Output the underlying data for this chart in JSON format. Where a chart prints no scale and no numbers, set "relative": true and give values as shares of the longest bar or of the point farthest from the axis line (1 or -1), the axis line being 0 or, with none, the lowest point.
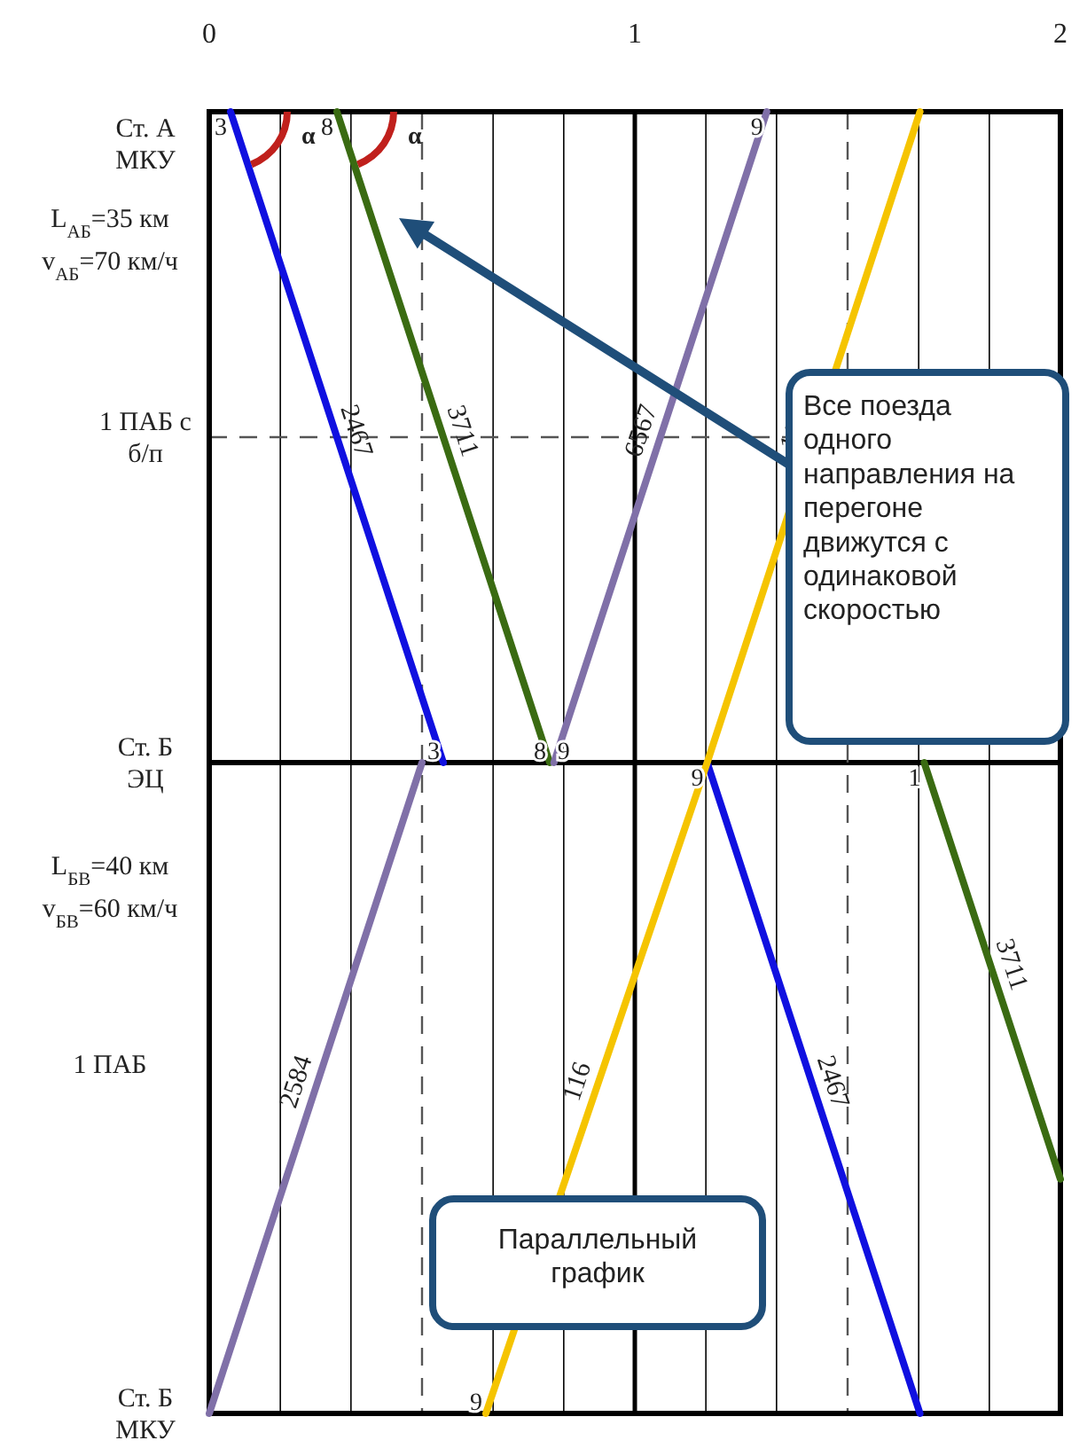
{
  "chart_data": {
    "type": "line",
    "relative": true,
    "xlim": [
      0,
      2
    ],
    "xticks": [
      0,
      {
        "value": 0.167,
        "label": null
      },
      {
        "value": 0.333,
        "label": null
      },
      {
        "value": 0.667,
        "label": null
      },
      {
        "value": 0.833,
        "label": null
      },
      1,
      {
        "value": 1.167,
        "label": null
      },
      {
        "value": 1.333,
        "label": null
      },
      {
        "value": 1.667,
        "label": null
      },
      {
        "value": 1.833,
        "label": null
      },
      2
    ],
    "grid": "x",
    "marker": "none",
    "line_style": "solid",
    "series": [
      {
        "name": "2467",
        "color": "#1010e0",
        "x": [
          0.05,
          0.55,
          null,
          1.17,
          1.67
        ],
        "values": [
          1,
          0.5,
          null,
          0.5,
          0
        ]
      },
      {
        "name": "3711",
        "color": "#3a6b12",
        "x": [
          0.3,
          0.8,
          null,
          1.68,
          2
        ],
        "values": [
          1,
          0.5,
          null,
          0.5,
          0.18
        ]
      },
      {
        "name": "6567",
        "color": "#8070a8",
        "x": [
          0.81,
          1.31
        ],
        "values": [
          0.5,
          1
        ]
      },
      {
        "name": "2584",
        "color": "#8070a8",
        "x": [
          0,
          0.5
        ],
        "values": [
          0,
          0.5
        ]
      },
      {
        "name": "116",
        "color": "#f5c400",
        "x": [
          0.65,
          1.17,
          null,
          1.17,
          1.67
        ],
        "values": [
          0,
          0.5,
          null,
          0.5,
          1
        ]
      }
    ],
    "ref_lines": [
      {
        "axis": "y",
        "value": 0.5,
        "label": "Ст. Б\nЭЦ",
        "color": "#000000",
        "line_style": "solid"
      },
      {
        "axis": "y",
        "value": 0.75,
        "label": "1 ПАБ с\nб/п",
        "line_style": "dashed",
        "color": "#555555"
      },
      {
        "axis": "x",
        "value": 0.5,
        "line_style": "dashed",
        "color": "#555555"
      },
      {
        "axis": "x",
        "value": 1,
        "line_style": "solid",
        "color": "#000000"
      },
      {
        "axis": "x",
        "value": 1.5,
        "line_style": "dashed",
        "color": "#555555"
      }
    ],
    "annotations": [
      "L$_{АБ}$=35 км",
      "v$_{АБ}$=70 км/ч",
      "L$_{БВ}$=40 км",
      "v$_{БВ}$=60 км/ч",
      "1 ПАБ",
      {
        "text": "3",
        "x": 0.05,
        "y": 1
      },
      {
        "text": "8",
        "x": 0.3,
        "y": 1
      },
      {
        "text": "9",
        "x": 1.31,
        "y": 1
      },
      {
        "text": "3",
        "x": 0.55,
        "y": 0.5
      },
      {
        "text": "8",
        "x": 0.8,
        "y": 0.5
      },
      {
        "text": "9",
        "x": 0.81,
        "y": 0.5
      },
      {
        "text": "9",
        "x": 1.17,
        "y": 0.5
      },
      {
        "text": "1",
        "x": 1.68,
        "y": 0.5
      },
      {
        "text": "9",
        "x": 0.65,
        "y": 0
      },
      "α",
      "α",
      "Все поезда\nодного\nнаправления на\nперегоне\nдвижутся с\nодинаковой\nскоростью",
      "Параллельный\nграфик",
      "Ст. А\nМКУ",
      "Ст. Б\nМКУ"
    ]
  }
}
